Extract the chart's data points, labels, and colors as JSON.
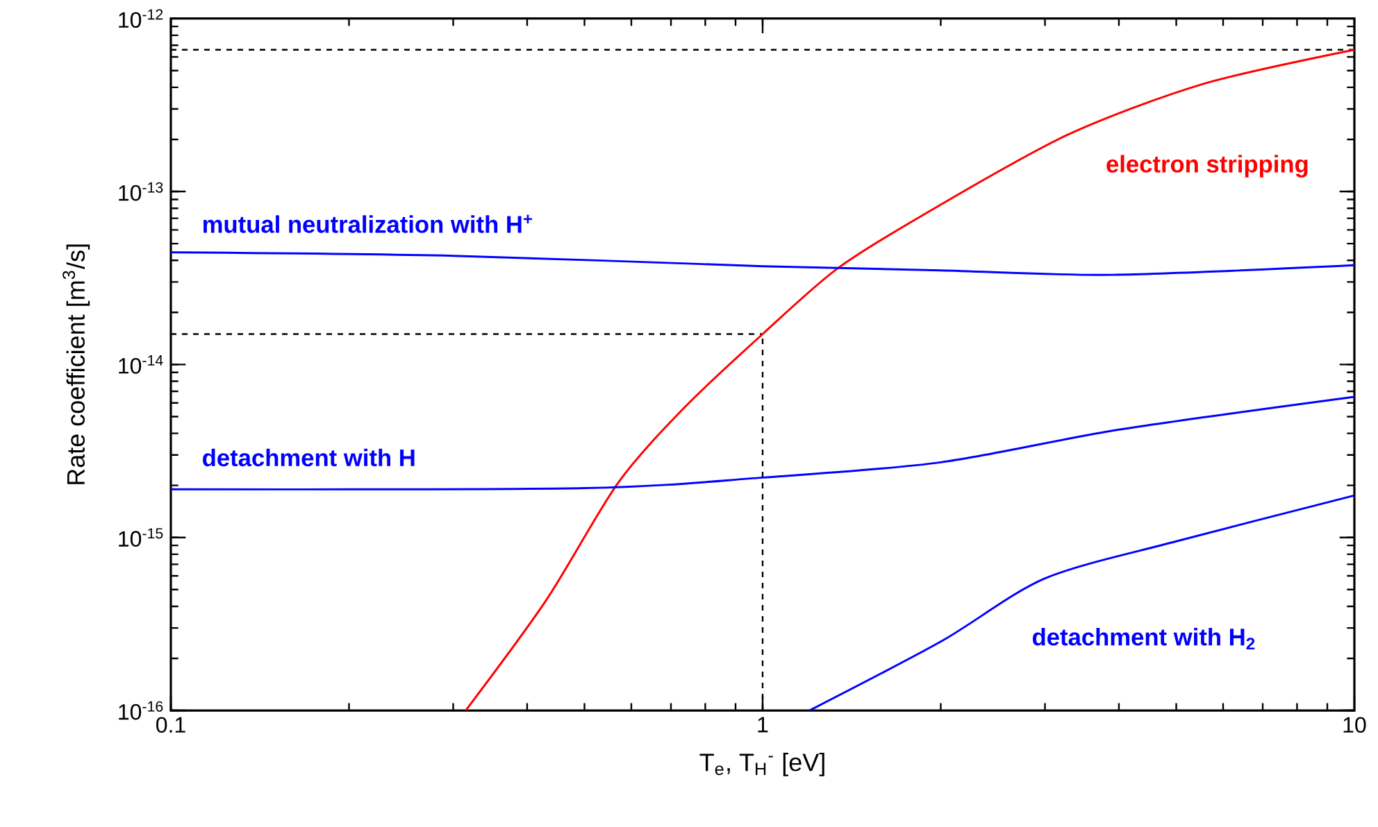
{
  "chart_data": {
    "type": "line",
    "xlabel": "T$_{e}$, T$_{H}$$^{-}$ [eV]",
    "ylabel": "Rate coefficient [m$^{3}$/s]",
    "log": "xy",
    "xlim": [
      0.1,
      10
    ],
    "ylim": [
      1e-16,
      1e-12
    ],
    "xticks": [
      0.1,
      1,
      10
    ],
    "yticks": [
      {
        "value": 1e-16,
        "label": "10$^{-16}$"
      },
      {
        "value": 1e-15,
        "label": "10$^{-15}$"
      },
      {
        "value": 1e-14,
        "label": "10$^{-14}$"
      },
      {
        "value": 1e-13,
        "label": "10$^{-13}$"
      },
      {
        "value": 1e-12,
        "label": "10$^{-12}$"
      }
    ],
    "series": [
      {
        "name": "electron stripping",
        "color": "#ff0000",
        "x": [
          0.315,
          0.43,
          0.57,
          0.74,
          1,
          1.34,
          1.89,
          3.25,
          5.57,
          10
        ],
        "values": [
          1e-16,
          4.3e-16,
          2.07e-15,
          5.7e-15,
          1.5e-14,
          3.6e-14,
          7.5e-14,
          2.1e-13,
          4.2e-13,
          6.6e-13
        ]
      },
      {
        "name": "mutual neutralization with H$^{+}$",
        "color": "#0000ff",
        "x": [
          0.1,
          0.3,
          1,
          2,
          3.9,
          10
        ],
        "values": [
          4.45e-14,
          4.25e-14,
          3.7e-14,
          3.5e-14,
          3.3e-14,
          3.75e-14
        ]
      },
      {
        "name": "detachment with H",
        "color": "#0000ff",
        "x": [
          0.1,
          0.5,
          1,
          2,
          4,
          10
        ],
        "values": [
          1.9e-15,
          1.93e-15,
          2.22e-15,
          2.72e-15,
          4.2e-15,
          6.5e-15
        ]
      },
      {
        "name": "detachment with H$_{2}$",
        "color": "#0000ff",
        "x": [
          1.2,
          2,
          3,
          5,
          10
        ],
        "values": [
          1e-16,
          2.5e-16,
          5.8e-16,
          9.5e-16,
          1.75e-15
        ]
      }
    ],
    "ref_lines": [
      {
        "axis": "y",
        "value": 6.6e-13,
        "line_style": "dashed"
      },
      {
        "axis": "y",
        "value": 1.5e-14,
        "line_style": "dashed"
      },
      {
        "axis": "x",
        "value": 1,
        "line_style": "dashed"
      }
    ],
    "grid": false,
    "legend": false,
    "marker": "none",
    "line_style": "solid"
  }
}
